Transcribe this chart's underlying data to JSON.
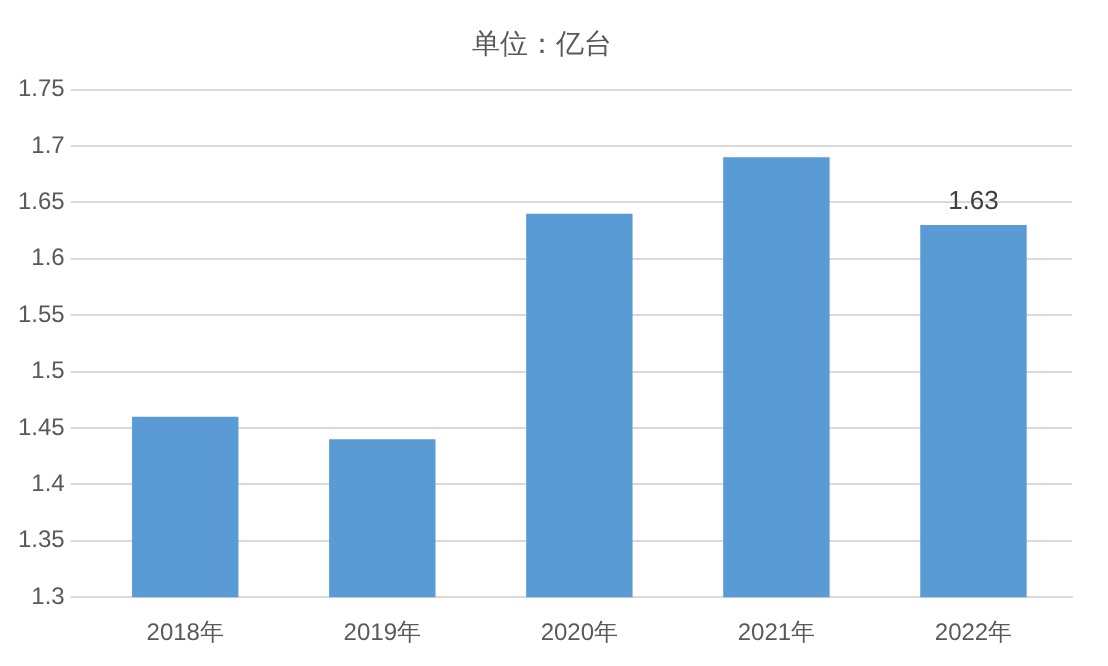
{
  "chart_data": {
    "type": "bar",
    "title": "单位：亿台",
    "categories": [
      "2018年",
      "2019年",
      "2020年",
      "2021年",
      "2022年"
    ],
    "values": [
      1.46,
      1.44,
      1.64,
      1.69,
      1.63
    ],
    "value_labels": [
      null,
      null,
      null,
      null,
      "1.63"
    ],
    "color": "#5b9bd5",
    "ylim": [
      1.3,
      1.75
    ],
    "yticks": [
      1.3,
      1.35,
      1.4,
      1.45,
      1.5,
      1.55,
      1.6,
      1.65,
      1.7,
      1.75
    ],
    "grid": "y",
    "legend": false
  }
}
